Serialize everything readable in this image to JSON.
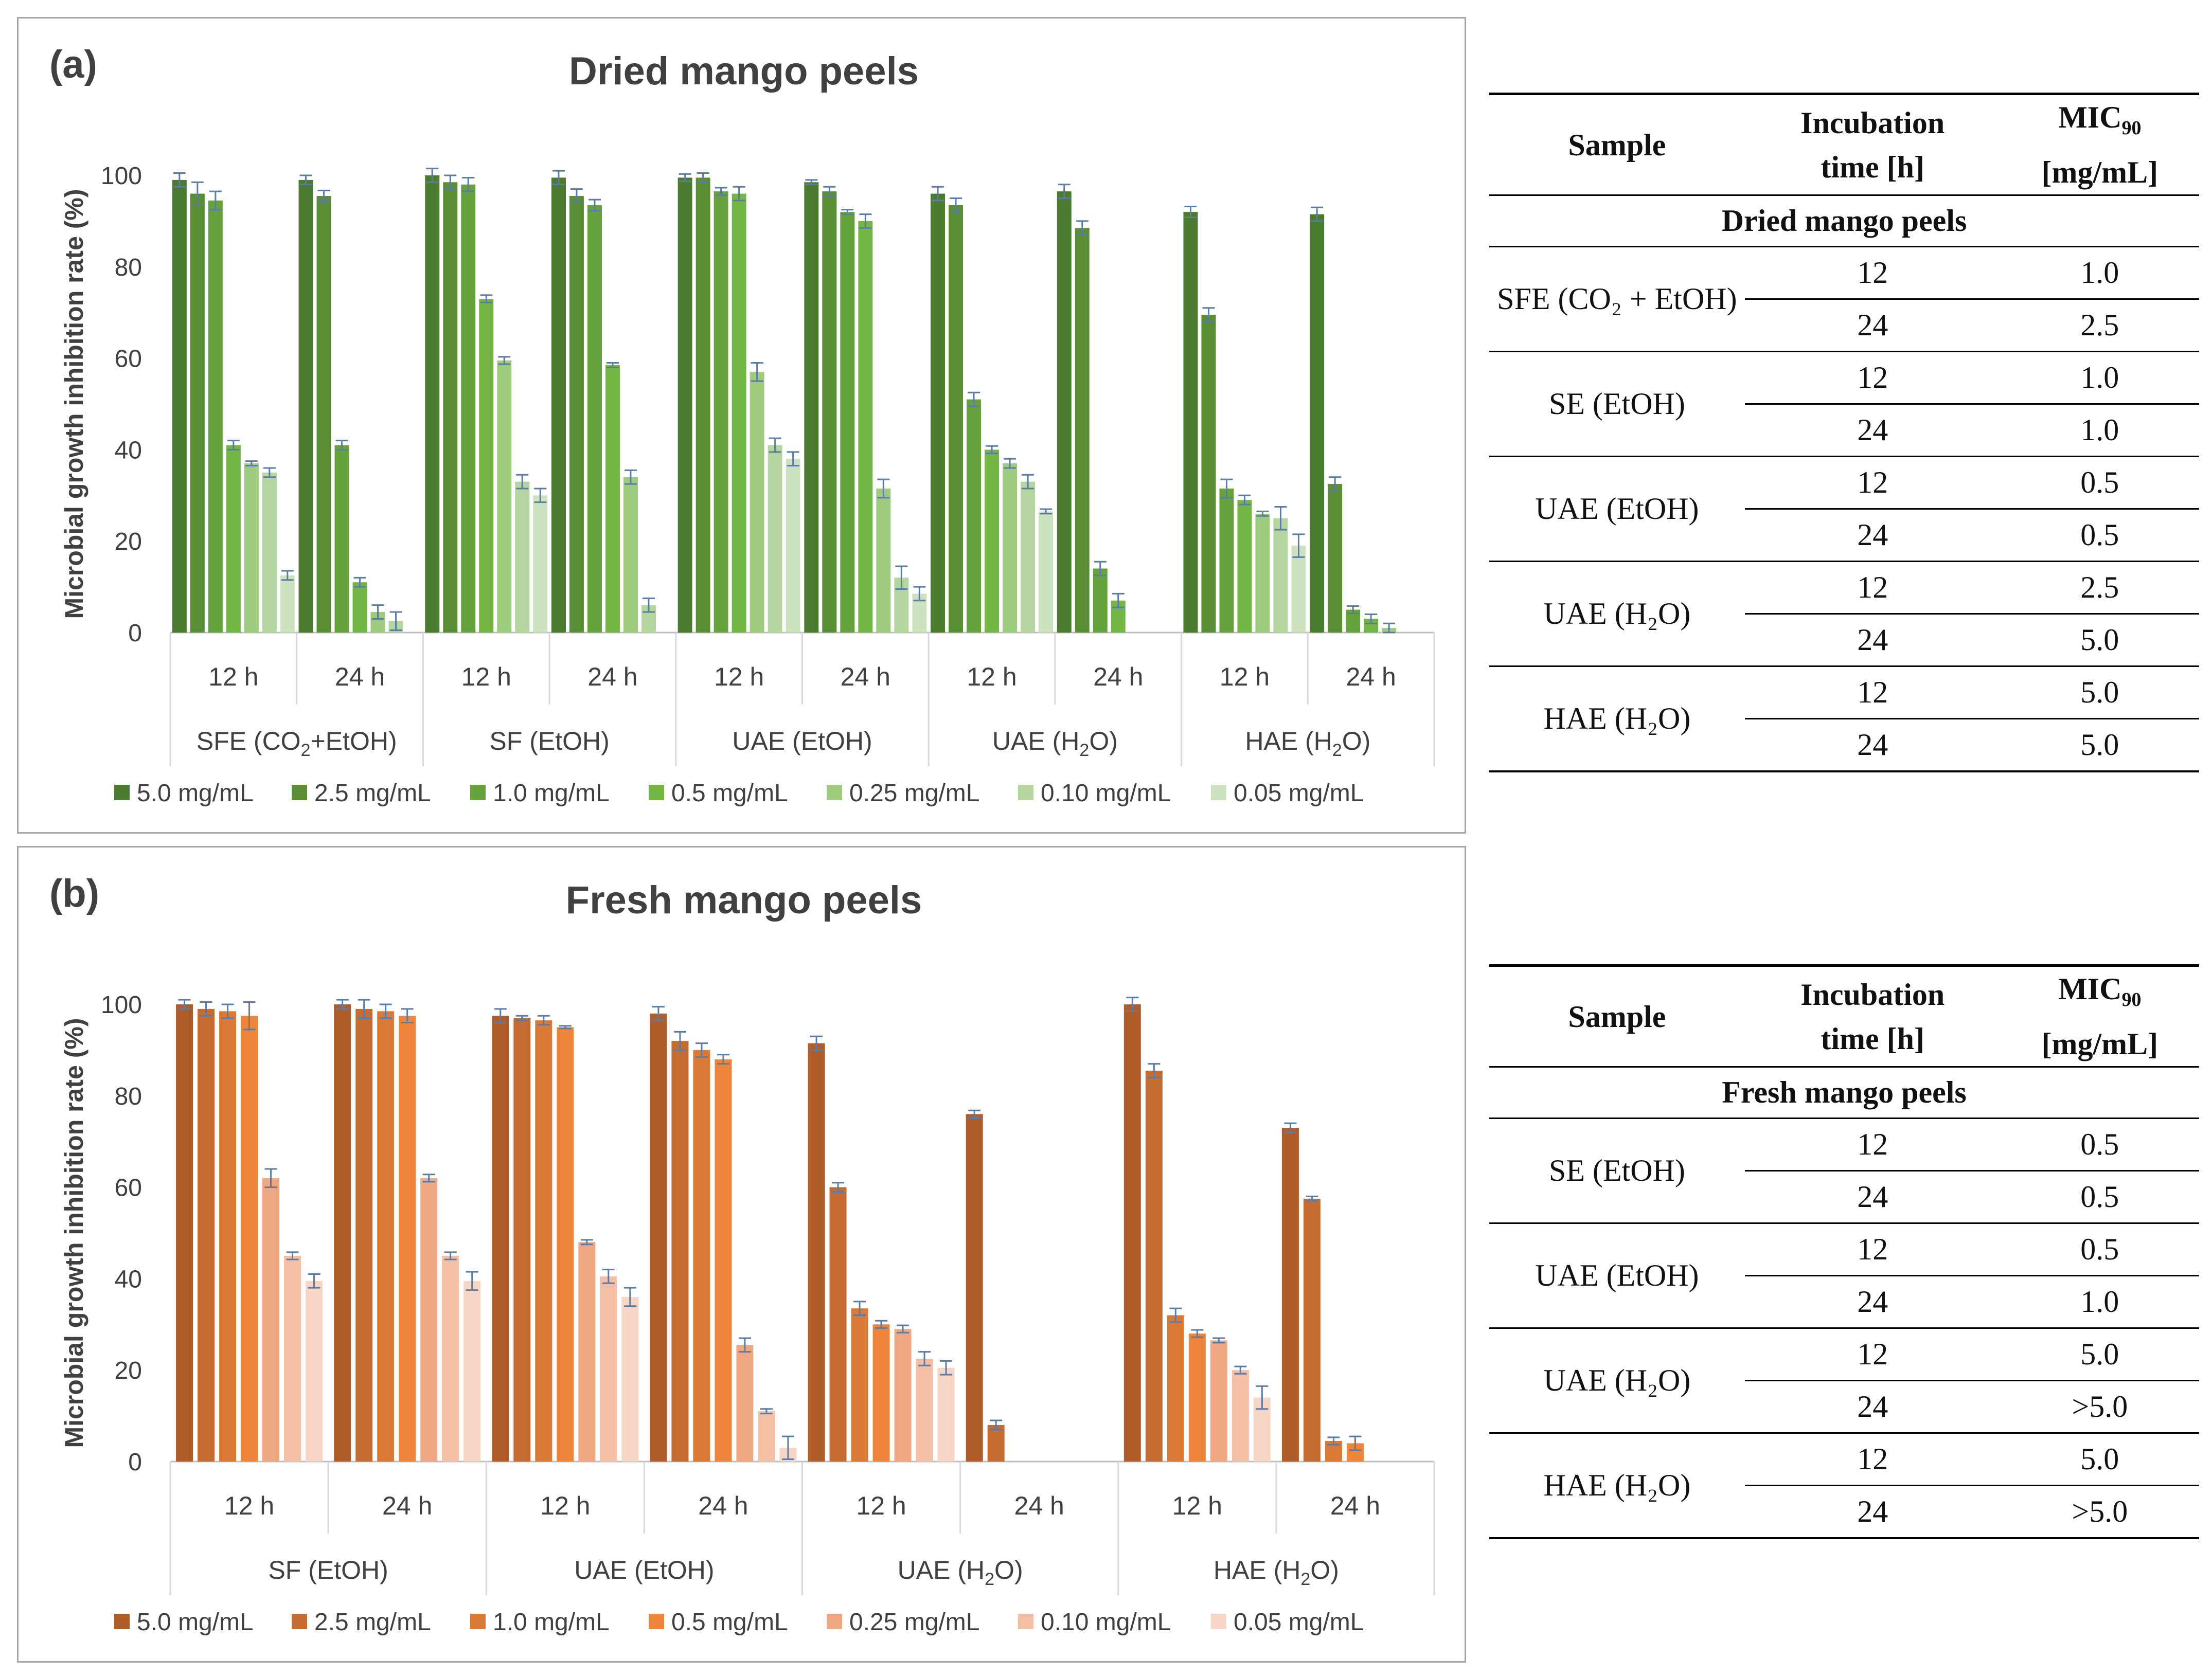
{
  "chart_data": [
    {
      "type": "bar",
      "panel_label": "(a)",
      "title": "Dried mango peels",
      "ylabel": "Microbial growth inhibition rate (%)",
      "ylim": [
        0,
        100
      ],
      "yticks": [
        0,
        20,
        40,
        60,
        80,
        100
      ],
      "groups": [
        {
          "label": "SFE (CO2+EtOH)",
          "label_main": "SFE (CO",
          "label_sub": "2",
          "label_end": "+EtOH)",
          "subgroups": [
            {
              "label": "12 h",
              "values": [
                99,
                96,
                94.5,
                41,
                37,
                35,
                12.5
              ],
              "errors": [
                1.5,
                2.5,
                2,
                1,
                0.5,
                1,
                1
              ]
            },
            {
              "label": "24 h",
              "values": [
                99,
                95.5,
                41,
                11,
                4.5,
                2.5,
                null
              ],
              "errors": [
                1,
                1.2,
                1,
                1,
                1.5,
                2,
                0
              ]
            }
          ]
        },
        {
          "label": "SF (EtOH)",
          "label_main": "SF (EtOH)",
          "label_sub": "",
          "label_end": "",
          "subgroups": [
            {
              "label": "12 h",
              "values": [
                100,
                98.5,
                98,
                73,
                59.5,
                33,
                30
              ],
              "errors": [
                1.5,
                1.5,
                1.5,
                0.8,
                0.8,
                1.5,
                1.5
              ]
            },
            {
              "label": "24 h",
              "values": [
                99.5,
                95.5,
                93.5,
                58.5,
                34,
                6,
                null
              ],
              "errors": [
                1.5,
                1.5,
                1.2,
                0.5,
                1.5,
                1.5,
                0
              ]
            }
          ]
        },
        {
          "label": "UAE (EtOH)",
          "label_main": "UAE (EtOH)",
          "label_sub": "",
          "label_end": "",
          "subgroups": [
            {
              "label": "12 h",
              "values": [
                99.5,
                99.5,
                96.5,
                96,
                57,
                41,
                38
              ],
              "errors": [
                0.8,
                1,
                0.8,
                1.5,
                2,
                1.5,
                1.5
              ]
            },
            {
              "label": "24 h",
              "values": [
                98.5,
                96.5,
                92,
                90,
                31.5,
                12,
                8.5
              ],
              "errors": [
                0.5,
                1,
                0.5,
                1.5,
                2,
                2.5,
                1.5
              ]
            }
          ]
        },
        {
          "label": "UAE (H2O)",
          "label_main": "UAE (H",
          "label_sub": "2",
          "label_end": "O)",
          "subgroups": [
            {
              "label": "12 h",
              "values": [
                96,
                93.5,
                51,
                40,
                37,
                33,
                26.5
              ],
              "errors": [
                1.5,
                1.5,
                1.5,
                0.8,
                1,
                1.5,
                0.5
              ]
            },
            {
              "label": "24 h",
              "values": [
                96.5,
                88.5,
                14,
                7,
                null,
                null,
                null
              ],
              "errors": [
                1.5,
                1.5,
                1.5,
                1.5,
                0,
                0,
                0
              ]
            }
          ]
        },
        {
          "label": "HAE (H2O)",
          "label_main": "HAE (H",
          "label_sub": "2",
          "label_end": "O)",
          "subgroups": [
            {
              "label": "12 h",
              "values": [
                92,
                69.5,
                31.5,
                29,
                26,
                25,
                19
              ],
              "errors": [
                1.2,
                1.5,
                2,
                1,
                0.5,
                2.5,
                2.5
              ]
            },
            {
              "label": "24 h",
              "values": [
                91.5,
                32.5,
                5,
                3,
                1,
                null,
                null
              ],
              "errors": [
                1.5,
                1.5,
                0.8,
                1,
                1,
                0,
                0
              ]
            }
          ]
        }
      ],
      "legend": [
        "5.0 mg/mL",
        "2.5 mg/mL",
        "1.0 mg/mL",
        "0.5 mg/mL",
        "0.25 mg/mL",
        "0.10 mg/mL",
        "0.05 mg/mL"
      ],
      "colors": [
        "#4a7b2e",
        "#5a8f36",
        "#67a33d",
        "#74b744",
        "#9ecb7e",
        "#b5d6a0",
        "#cde3c0"
      ]
    },
    {
      "type": "bar",
      "panel_label": "(b)",
      "title": "Fresh mango peels",
      "ylabel": "Microbial growth inhibition rate (%)",
      "ylim": [
        0,
        100
      ],
      "yticks": [
        0,
        20,
        40,
        60,
        80,
        100
      ],
      "groups": [
        {
          "label": "SF (EtOH)",
          "label_main": "SF (EtOH)",
          "label_sub": "",
          "label_end": "",
          "subgroups": [
            {
              "label": "12 h",
              "values": [
                100,
                99,
                98.5,
                97.5,
                62,
                45,
                39.5
              ],
              "errors": [
                1,
                1.5,
                1.5,
                3,
                2,
                0.8,
                1.5
              ]
            },
            {
              "label": "24 h",
              "values": [
                100,
                99,
                98.5,
                97.5,
                62,
                45,
                39.5
              ],
              "errors": [
                1,
                2,
                1.5,
                1.5,
                0.8,
                0.8,
                2
              ]
            }
          ]
        },
        {
          "label": "UAE (EtOH)",
          "label_main": "UAE (EtOH)",
          "label_sub": "",
          "label_end": "",
          "subgroups": [
            {
              "label": "12 h",
              "values": [
                97.5,
                97,
                96.5,
                95,
                48,
                40.5,
                36
              ],
              "errors": [
                1.5,
                0.5,
                1,
                0.3,
                0.5,
                1.5,
                2
              ]
            },
            {
              "label": "24 h",
              "values": [
                98,
                92,
                90,
                88,
                25.5,
                11,
                3
              ],
              "errors": [
                1.5,
                2,
                1.5,
                1,
                1.5,
                0.5,
                2.5
              ]
            }
          ]
        },
        {
          "label": "UAE (H2O)",
          "label_main": "UAE (H",
          "label_sub": "2",
          "label_end": "O)",
          "subgroups": [
            {
              "label": "12 h",
              "values": [
                91.5,
                60,
                33.5,
                30,
                29,
                22.5,
                20.5
              ],
              "errors": [
                1.5,
                1,
                1.5,
                0.8,
                0.8,
                1.5,
                1.5
              ]
            },
            {
              "label": "24 h",
              "values": [
                76,
                8,
                null,
                null,
                null,
                null,
                null
              ],
              "errors": [
                0.8,
                1,
                0,
                0,
                0,
                0,
                0
              ]
            }
          ]
        },
        {
          "label": "HAE (H2O)",
          "label_main": "HAE (H",
          "label_sub": "2",
          "label_end": "O)",
          "subgroups": [
            {
              "label": "12 h",
              "values": [
                100,
                85.5,
                32,
                28,
                26.5,
                20,
                14
              ],
              "errors": [
                1.5,
                1.5,
                1.5,
                0.8,
                0.5,
                0.8,
                2.5
              ]
            },
            {
              "label": "24 h",
              "values": [
                73,
                57.5,
                4.5,
                4,
                null,
                null,
                null
              ],
              "errors": [
                1,
                0.5,
                0.8,
                1.5,
                0,
                0,
                0
              ]
            }
          ]
        }
      ],
      "legend": [
        "5.0 mg/mL",
        "2.5 mg/mL",
        "1.0 mg/mL",
        "0.5 mg/mL",
        "0.25 mg/mL",
        "0.10 mg/mL",
        "0.05 mg/mL"
      ],
      "colors": [
        "#b15d2a",
        "#c56c33",
        "#db7a36",
        "#ef853a",
        "#f0a882",
        "#f4bfa4",
        "#f7d6c6"
      ]
    }
  ],
  "tables": {
    "dried": {
      "headers": {
        "sample": "Sample",
        "incubation_1": "Incubation",
        "incubation_2": "time [h]",
        "mic_main": "MIC",
        "mic_sub": "90",
        "mic_unit": "[mg/mL]"
      },
      "group_title": "Dried mango peels",
      "rows": [
        {
          "sample": "SFE (CO₂ + EtOH)",
          "t1": "12",
          "m1": "1.0",
          "t2": "24",
          "m2": "2.5"
        },
        {
          "sample": "SE (EtOH)",
          "t1": "12",
          "m1": "1.0",
          "t2": "24",
          "m2": "1.0"
        },
        {
          "sample": "UAE (EtOH)",
          "t1": "12",
          "m1": "0.5",
          "t2": "24",
          "m2": "0.5"
        },
        {
          "sample": "UAE (H₂O)",
          "t1": "12",
          "m1": "2.5",
          "t2": "24",
          "m2": "5.0"
        },
        {
          "sample": "HAE (H₂O)",
          "t1": "12",
          "m1": "5.0",
          "t2": "24",
          "m2": "5.0"
        }
      ]
    },
    "fresh": {
      "headers": {
        "sample": "Sample",
        "incubation_1": "Incubation",
        "incubation_2": "time [h]",
        "mic_main": "MIC",
        "mic_sub": "90",
        "mic_unit": "[mg/mL]"
      },
      "group_title": "Fresh mango peels",
      "rows": [
        {
          "sample": "SE (EtOH)",
          "t1": "12",
          "m1": "0.5",
          "t2": "24",
          "m2": "0.5"
        },
        {
          "sample": "UAE (EtOH)",
          "t1": "12",
          "m1": "0.5",
          "t2": "24",
          "m2": "1.0"
        },
        {
          "sample": "UAE (H₂O)",
          "t1": "12",
          "m1": "5.0",
          "t2": "24",
          "m2": ">5.0"
        },
        {
          "sample": "HAE (H₂O)",
          "t1": "12",
          "m1": "5.0",
          "t2": "24",
          "m2": ">5.0"
        }
      ]
    }
  }
}
